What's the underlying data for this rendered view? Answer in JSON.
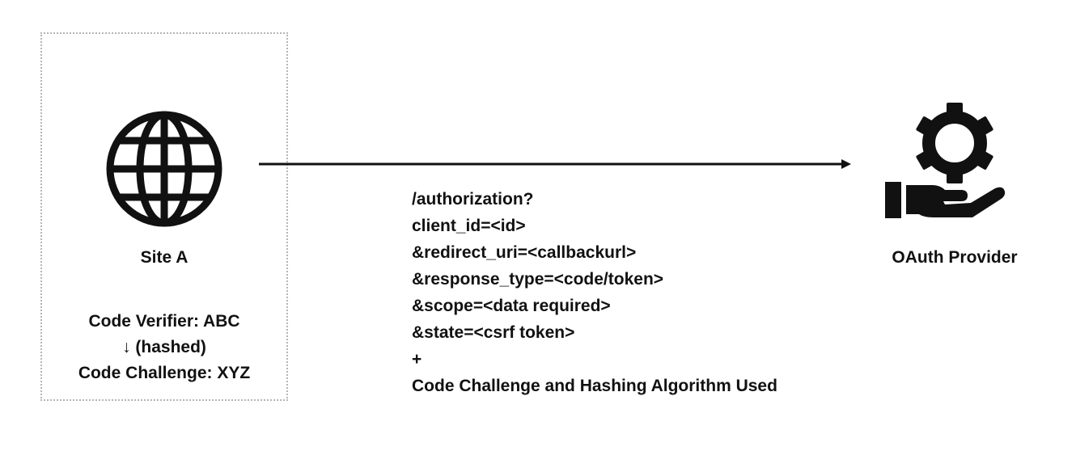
{
  "site": {
    "label": "Site A",
    "icon": "globe-icon",
    "code_verifier": "Code Verifier: ABC",
    "hash_step": "↓ (hashed)",
    "code_challenge": "Code Challenge: XYZ"
  },
  "request": {
    "lines": [
      "/authorization?",
      "client_id=<id>",
      "&redirect_uri=<callbackurl>",
      "&response_type=<code/token>",
      "&scope=<data required>",
      "&state=<csrf token>",
      "+",
      "Code Challenge and Hashing Algorithm Used"
    ]
  },
  "provider": {
    "label": "OAuth Provider",
    "icon": "gear-hand-icon"
  }
}
